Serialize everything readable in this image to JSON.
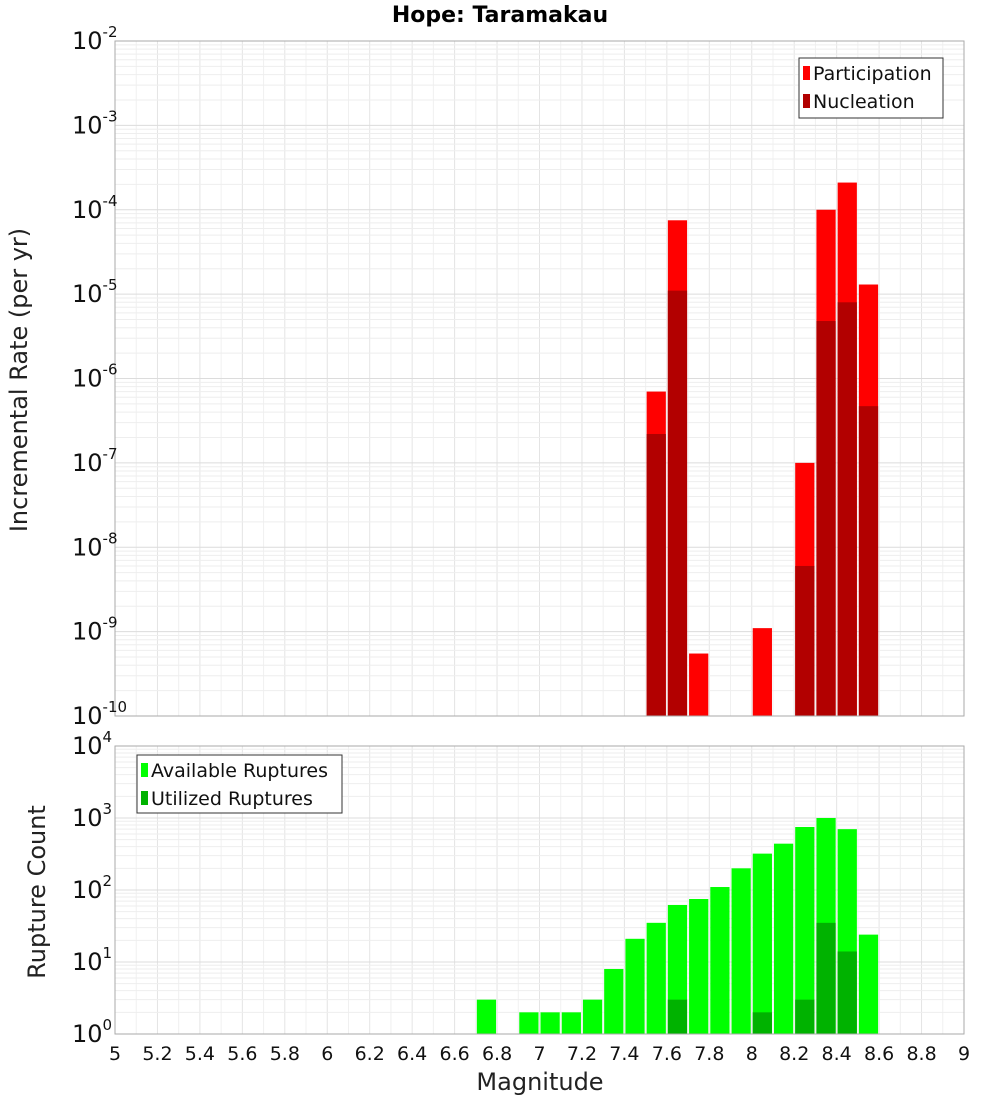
{
  "chart_data": [
    {
      "type": "bar",
      "title": "Hope: Taramakau",
      "xlabel": "",
      "ylabel": "Incremental Rate (per yr)",
      "yscale": "log",
      "ylim": [
        1e-10,
        0.01
      ],
      "xlim": [
        5,
        9
      ],
      "grid": true,
      "legend_position": "top-right",
      "series": [
        {
          "name": "Participation",
          "color": "#ff0000",
          "x": [
            7.55,
            7.65,
            7.75,
            8.05,
            8.25,
            8.35,
            8.45,
            8.55
          ],
          "values": [
            7e-07,
            7.5e-05,
            5.5e-10,
            1.1e-09,
            1e-07,
            0.0001,
            0.00021,
            1.3e-05
          ]
        },
        {
          "name": "Nucleation",
          "color": "#b20000",
          "x": [
            7.55,
            7.65,
            8.25,
            8.35,
            8.45,
            8.55
          ],
          "values": [
            2.2e-07,
            1.1e-05,
            6e-09,
            4.8e-06,
            8e-06,
            4.7e-07
          ]
        }
      ]
    },
    {
      "type": "bar",
      "title": "",
      "xlabel": "Magnitude",
      "ylabel": "Rupture Count",
      "yscale": "log",
      "ylim": [
        1,
        10000
      ],
      "xlim": [
        5,
        9
      ],
      "grid": true,
      "legend_position": "top-left",
      "xticks": [
        "5",
        "5.2",
        "5.4",
        "5.6",
        "5.8",
        "6",
        "6.2",
        "6.4",
        "6.6",
        "6.8",
        "7",
        "7.2",
        "7.4",
        "7.6",
        "7.8",
        "8",
        "8.2",
        "8.4",
        "8.6",
        "8.8",
        "9"
      ],
      "series": [
        {
          "name": "Available Ruptures",
          "color": "#00ff00",
          "x": [
            6.75,
            6.95,
            7.05,
            7.15,
            7.25,
            7.35,
            7.45,
            7.55,
            7.65,
            7.75,
            7.85,
            7.95,
            8.05,
            8.15,
            8.25,
            8.35,
            8.45,
            8.55
          ],
          "values": [
            3,
            2,
            2,
            2,
            3,
            8,
            21,
            35,
            62,
            75,
            110,
            200,
            320,
            440,
            750,
            1000,
            700,
            24
          ]
        },
        {
          "name": "Utilized Ruptures",
          "color": "#00b200",
          "x": [
            7.55,
            7.65,
            7.75,
            8.05,
            8.15,
            8.25,
            8.35,
            8.45,
            8.55
          ],
          "values": [
            1,
            3,
            1,
            2,
            1,
            3,
            35,
            14,
            1
          ]
        }
      ]
    }
  ]
}
